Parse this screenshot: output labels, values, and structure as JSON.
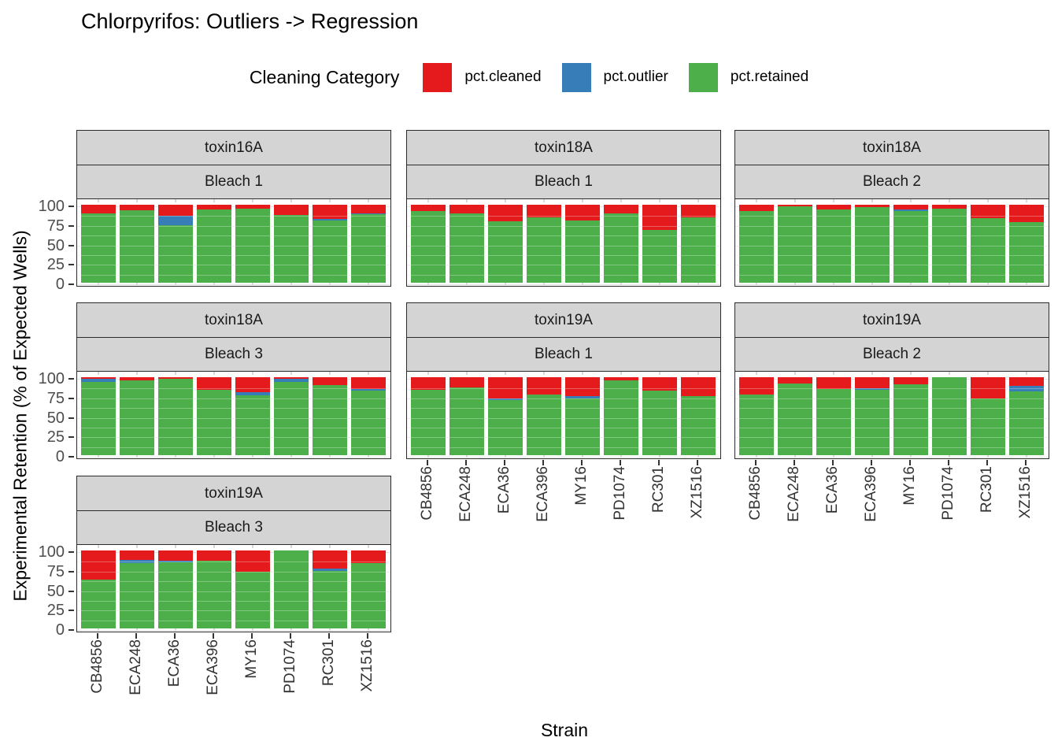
{
  "title": "Chlorpyrifos: Outliers -> Regression",
  "legend": {
    "title": "Cleaning Category",
    "items": [
      {
        "label": "pct.cleaned",
        "color": "#E41A1C"
      },
      {
        "label": "pct.outlier",
        "color": "#377EB8"
      },
      {
        "label": "pct.retained",
        "color": "#4DAF4A"
      }
    ]
  },
  "axes": {
    "x_title": "Strain",
    "y_title": "Experimental Retention (% of Expected Wells)",
    "y_ticks": [
      100,
      75,
      50,
      25,
      0
    ]
  },
  "chart_data": {
    "type": "bar",
    "stacked": true,
    "title": "Chlorpyrifos: Outliers -> Regression",
    "xlabel": "Strain",
    "ylabel": "Experimental Retention (% of Expected Wells)",
    "ylim": [
      0,
      100
    ],
    "legend_position": "top",
    "grid": true,
    "categories": [
      "CB4856",
      "ECA248",
      "ECA36",
      "ECA396",
      "MY16",
      "PD1074",
      "RC301",
      "XZ1516"
    ],
    "stack_order_bottom_to_top": [
      "pct.retained",
      "pct.outlier",
      "pct.cleaned"
    ],
    "colors": {
      "pct.cleaned": "#E41A1C",
      "pct.outlier": "#377EB8",
      "pct.retained": "#4DAF4A"
    },
    "facets": [
      {
        "toxin": "toxin16A",
        "bleach": "Bleach 1",
        "series": [
          {
            "name": "pct.retained",
            "values": [
              89,
              93,
              74,
              94,
              95,
              87,
              80,
              88
            ]
          },
          {
            "name": "pct.outlier",
            "values": [
              0,
              0,
              12,
              0,
              0,
              0,
              2,
              1
            ]
          },
          {
            "name": "pct.cleaned",
            "values": [
              11,
              7,
              14,
              6,
              5,
              13,
              18,
              11
            ]
          }
        ]
      },
      {
        "toxin": "toxin18A",
        "bleach": "Bleach 1",
        "series": [
          {
            "name": "pct.retained",
            "values": [
              92,
              89,
              79,
              84,
              80,
              89,
              68,
              84
            ]
          },
          {
            "name": "pct.outlier",
            "values": [
              0,
              0,
              0,
              0,
              0,
              0,
              0,
              0
            ]
          },
          {
            "name": "pct.cleaned",
            "values": [
              8,
              11,
              21,
              16,
              20,
              11,
              32,
              16
            ]
          }
        ]
      },
      {
        "toxin": "toxin18A",
        "bleach": "Bleach 2",
        "series": [
          {
            "name": "pct.retained",
            "values": [
              92,
              98,
              94,
              97,
              92,
              95,
              83,
              78
            ]
          },
          {
            "name": "pct.outlier",
            "values": [
              0,
              0,
              0,
              0,
              2,
              0,
              0,
              0
            ]
          },
          {
            "name": "pct.cleaned",
            "values": [
              8,
              2,
              6,
              3,
              6,
              5,
              17,
              22
            ]
          }
        ]
      },
      {
        "toxin": "toxin18A",
        "bleach": "Bleach 3",
        "series": [
          {
            "name": "pct.retained",
            "values": [
              94,
              96,
              98,
              84,
              77,
              94,
              90,
              83
            ]
          },
          {
            "name": "pct.outlier",
            "values": [
              4,
              0,
              0,
              0,
              4,
              4,
              0,
              2
            ]
          },
          {
            "name": "pct.cleaned",
            "values": [
              2,
              4,
              2,
              16,
              19,
              2,
              10,
              15
            ]
          }
        ]
      },
      {
        "toxin": "toxin19A",
        "bleach": "Bleach 1",
        "series": [
          {
            "name": "pct.retained",
            "values": [
              84,
              87,
              71,
              78,
              73,
              96,
              83,
              76
            ]
          },
          {
            "name": "pct.outlier",
            "values": [
              0,
              0,
              2,
              0,
              3,
              0,
              0,
              0
            ]
          },
          {
            "name": "pct.cleaned",
            "values": [
              16,
              13,
              27,
              22,
              24,
              4,
              17,
              24
            ]
          }
        ]
      },
      {
        "toxin": "toxin19A",
        "bleach": "Bleach 2",
        "series": [
          {
            "name": "pct.retained",
            "values": [
              78,
              92,
              85,
              84,
              91,
              100,
              73,
              82
            ]
          },
          {
            "name": "pct.outlier",
            "values": [
              0,
              0,
              0,
              2,
              0,
              0,
              0,
              7
            ]
          },
          {
            "name": "pct.cleaned",
            "values": [
              22,
              8,
              15,
              14,
              9,
              0,
              27,
              11
            ]
          }
        ]
      },
      {
        "toxin": "toxin19A",
        "bleach": "Bleach 3",
        "series": [
          {
            "name": "pct.retained",
            "values": [
              63,
              84,
              85,
              87,
              73,
              100,
              74,
              84
            ]
          },
          {
            "name": "pct.outlier",
            "values": [
              0,
              4,
              2,
              0,
              0,
              0,
              3,
              0
            ]
          },
          {
            "name": "pct.cleaned",
            "values": [
              37,
              12,
              13,
              13,
              27,
              0,
              23,
              16
            ]
          }
        ]
      }
    ]
  }
}
